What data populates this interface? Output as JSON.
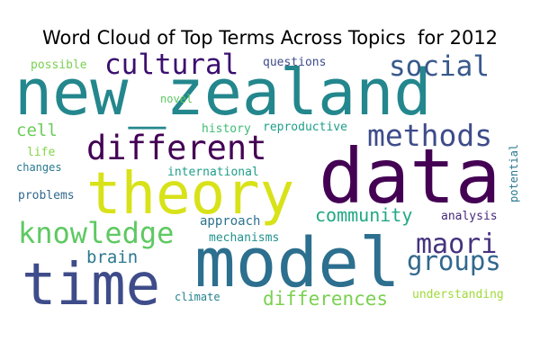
{
  "chart_data": {
    "type": "wordcloud",
    "title": "Word Cloud of Top Terms Across Topics  for 2012",
    "words": [
      {
        "text": "new_zealand",
        "weight": 100,
        "color": "#23878d"
      },
      {
        "text": "data",
        "weight": 95,
        "color": "#440154"
      },
      {
        "text": "model",
        "weight": 88,
        "color": "#2c6f8e"
      },
      {
        "text": "theory",
        "weight": 75,
        "color": "#d8e219"
      },
      {
        "text": "time",
        "weight": 68,
        "color": "#3e4c8a"
      },
      {
        "text": "different",
        "weight": 45,
        "color": "#440154"
      },
      {
        "text": "cultural",
        "weight": 33,
        "color": "#3b0f70"
      },
      {
        "text": "social",
        "weight": 33,
        "color": "#38598c"
      },
      {
        "text": "methods",
        "weight": 35,
        "color": "#3e4c8a"
      },
      {
        "text": "knowledge",
        "weight": 37,
        "color": "#5ec962"
      },
      {
        "text": "maori",
        "weight": 32,
        "color": "#46337e"
      },
      {
        "text": "groups",
        "weight": 32,
        "color": "#31688e"
      },
      {
        "text": "community",
        "weight": 22,
        "color": "#22a884"
      },
      {
        "text": "differences",
        "weight": 22,
        "color": "#7ad151"
      },
      {
        "text": "brain",
        "weight": 21,
        "color": "#2a788e"
      },
      {
        "text": "cell",
        "weight": 19,
        "color": "#6ccd5a"
      },
      {
        "text": "questions",
        "weight": 14,
        "color": "#3e4c8a"
      },
      {
        "text": "possible",
        "weight": 14,
        "color": "#7ad151"
      },
      {
        "text": "novel",
        "weight": 12,
        "color": "#5ec962"
      },
      {
        "text": "history",
        "weight": 13,
        "color": "#3fbc73"
      },
      {
        "text": "reproductive",
        "weight": 13,
        "color": "#1f9e89"
      },
      {
        "text": "life",
        "weight": 13,
        "color": "#86d549"
      },
      {
        "text": "changes",
        "weight": 12,
        "color": "#2a788e"
      },
      {
        "text": "international",
        "weight": 13,
        "color": "#1f9e89"
      },
      {
        "text": "potential",
        "weight": 12,
        "color": "#2a788e"
      },
      {
        "text": "problems",
        "weight": 13,
        "color": "#31688e"
      },
      {
        "text": "approach",
        "weight": 14,
        "color": "#2c728e"
      },
      {
        "text": "mechanisms",
        "weight": 13,
        "color": "#21918c"
      },
      {
        "text": "analysis",
        "weight": 13,
        "color": "#482878"
      },
      {
        "text": "climate",
        "weight": 12,
        "color": "#25838e"
      },
      {
        "text": "understanding",
        "weight": 13,
        "color": "#a0da39"
      }
    ]
  }
}
